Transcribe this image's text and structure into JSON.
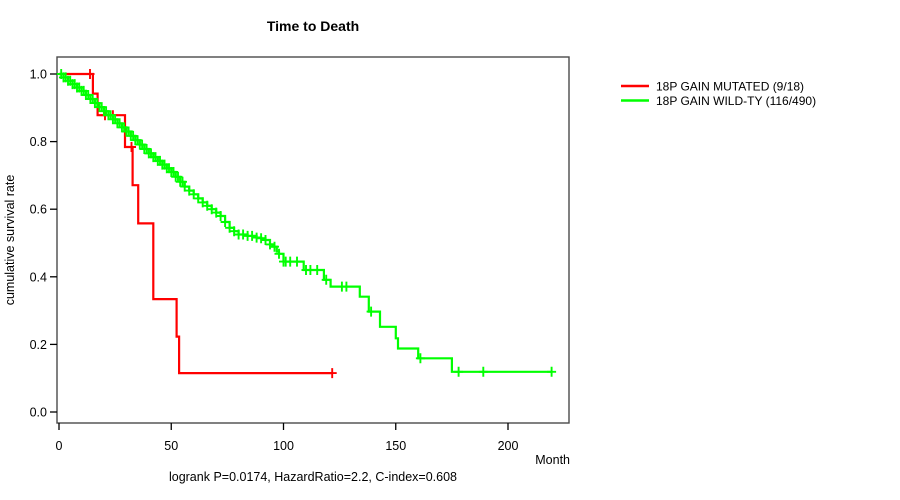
{
  "title": "Time to Death",
  "footer": "logrank P=0.0174, HazardRatio=2.2, C-index=0.608",
  "axes": {
    "x": {
      "label": "Month",
      "tick_labels": [
        "0",
        "50",
        "100",
        "150",
        "200"
      ],
      "tick_values": [
        0,
        50,
        100,
        150,
        200
      ]
    },
    "y": {
      "label": "cumulative survival rate",
      "tick_labels": [
        "0.0",
        "0.2",
        "0.4",
        "0.6",
        "0.8",
        "1.0"
      ],
      "tick_values": [
        0.0,
        0.2,
        0.4,
        0.6,
        0.8,
        1.0
      ]
    }
  },
  "legend": [
    {
      "label": "18P GAIN MUTATED (9/18)",
      "color": "#ff0000"
    },
    {
      "label": "18P GAIN WILD-TY (116/490)",
      "color": "#00ff00"
    }
  ],
  "chart_data": {
    "type": "line",
    "subtype": "kaplan-meier-step",
    "title": "Time to Death",
    "xlabel": "Month",
    "ylabel": "cumulative survival rate",
    "xlim": [
      0,
      225
    ],
    "ylim": [
      0.0,
      1.0
    ],
    "grid": false,
    "legend_position": "right-outside",
    "annotation": "logrank P=0.0174, HazardRatio=2.2, C-index=0.608",
    "series": [
      {
        "name": "18P GAIN MUTATED (9/18)",
        "color": "#ff0000",
        "events_total": "9/18",
        "steps": [
          [
            0,
            1.0
          ],
          [
            15.1,
            0.942
          ],
          [
            17.2,
            0.878
          ],
          [
            29.4,
            0.784
          ],
          [
            32.8,
            0.671
          ],
          [
            35.3,
            0.558
          ],
          [
            42,
            0.334
          ],
          [
            52.4,
            0.223
          ],
          [
            53.5,
            0.115
          ],
          [
            121.7,
            0.115
          ]
        ],
        "censor_months": [
          13.8,
          20.5,
          24,
          32.3,
          121.7
        ]
      },
      {
        "name": "18P GAIN WILD-TY (116/490)",
        "color": "#00ff00",
        "events_total": "116/490",
        "steps": [
          [
            0,
            1.0
          ],
          [
            2,
            0.99
          ],
          [
            4,
            0.98
          ],
          [
            6,
            0.97
          ],
          [
            8,
            0.96
          ],
          [
            10,
            0.95
          ],
          [
            12,
            0.938
          ],
          [
            14,
            0.926
          ],
          [
            16,
            0.914
          ],
          [
            18,
            0.902
          ],
          [
            20,
            0.89
          ],
          [
            22,
            0.878
          ],
          [
            24,
            0.866
          ],
          [
            26,
            0.854
          ],
          [
            28,
            0.842
          ],
          [
            30,
            0.83
          ],
          [
            32,
            0.817
          ],
          [
            34,
            0.804
          ],
          [
            36,
            0.791
          ],
          [
            38,
            0.778
          ],
          [
            40,
            0.765
          ],
          [
            42,
            0.754
          ],
          [
            44,
            0.743
          ],
          [
            46,
            0.732
          ],
          [
            48,
            0.721
          ],
          [
            50,
            0.71
          ],
          [
            52,
            0.696
          ],
          [
            54,
            0.681
          ],
          [
            56,
            0.667
          ],
          [
            58,
            0.655
          ],
          [
            60,
            0.644
          ],
          [
            62,
            0.632
          ],
          [
            64,
            0.62
          ],
          [
            66,
            0.61
          ],
          [
            68,
            0.6
          ],
          [
            70,
            0.59
          ],
          [
            72,
            0.58
          ],
          [
            74,
            0.562
          ],
          [
            76,
            0.545
          ],
          [
            78,
            0.535
          ],
          [
            80,
            0.525
          ],
          [
            84,
            0.521
          ],
          [
            88,
            0.516
          ],
          [
            90,
            0.514
          ],
          [
            92,
            0.509
          ],
          [
            94,
            0.496
          ],
          [
            95,
            0.489
          ],
          [
            97,
            0.475
          ],
          [
            98,
            0.468
          ],
          [
            100,
            0.445
          ],
          [
            109,
            0.42
          ],
          [
            118,
            0.391
          ],
          [
            121,
            0.371
          ],
          [
            134,
            0.341
          ],
          [
            138,
            0.297
          ],
          [
            143,
            0.252
          ],
          [
            150,
            0.218
          ],
          [
            151,
            0.188
          ],
          [
            160,
            0.159
          ],
          [
            175,
            0.119
          ],
          [
            219.4,
            0.119
          ]
        ],
        "censor_months": [
          1,
          2,
          3,
          4,
          5,
          6,
          7,
          8,
          9,
          10,
          11,
          12,
          13,
          14,
          15,
          16,
          17,
          18,
          19,
          20,
          21,
          22,
          23,
          24,
          25,
          26,
          27,
          28,
          29,
          30,
          31,
          32,
          33,
          34,
          35,
          36,
          37,
          38,
          39,
          40,
          41,
          42,
          43,
          44,
          45,
          46,
          47,
          48,
          49,
          50,
          51,
          52,
          53,
          54,
          55,
          56,
          58,
          60,
          62,
          64,
          66,
          68,
          70,
          72,
          74,
          76,
          78,
          80,
          82,
          84,
          86,
          88,
          90,
          92,
          94,
          96,
          98,
          100,
          101,
          103,
          106,
          110,
          112,
          115,
          119,
          126,
          128,
          139,
          161,
          178,
          189,
          219.4
        ]
      }
    ]
  }
}
